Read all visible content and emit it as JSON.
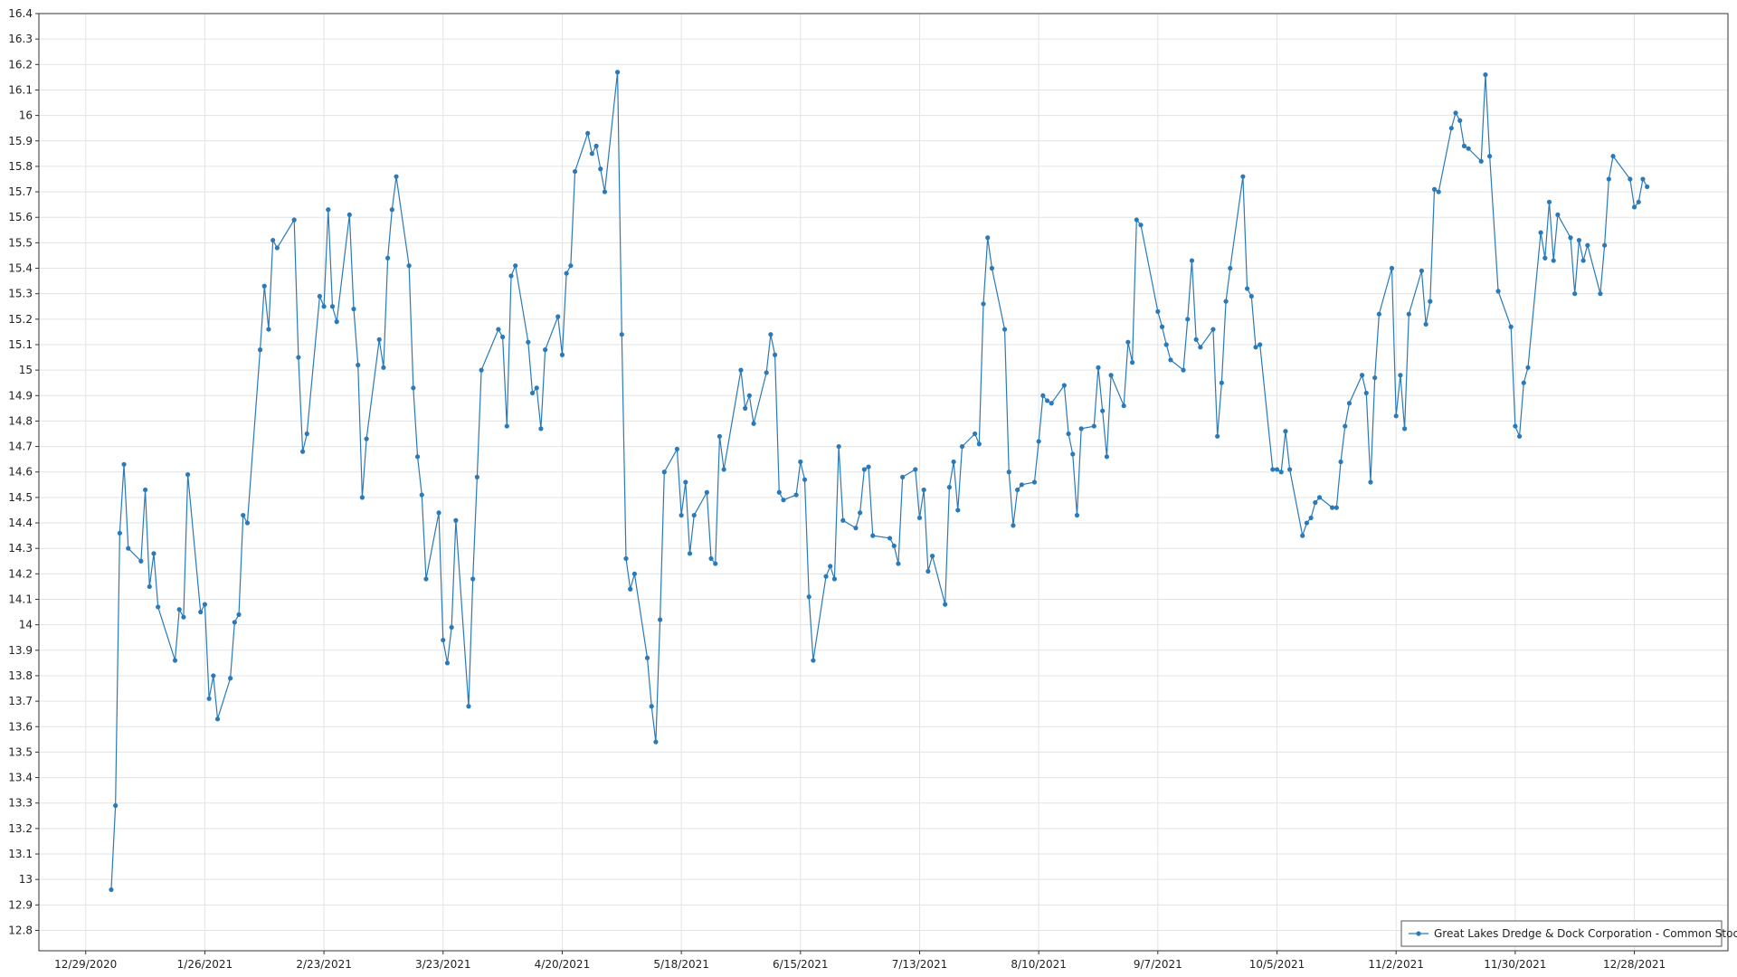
{
  "chart_data": {
    "type": "line",
    "x": [
      "1/4/2021",
      "1/5/2021",
      "1/6/2021",
      "1/7/2021",
      "1/8/2021",
      "1/11/2021",
      "1/12/2021",
      "1/13/2021",
      "1/14/2021",
      "1/15/2021",
      "1/19/2021",
      "1/20/2021",
      "1/21/2021",
      "1/22/2021",
      "1/25/2021",
      "1/26/2021",
      "1/27/2021",
      "1/28/2021",
      "1/29/2021",
      "2/1/2021",
      "2/2/2021",
      "2/3/2021",
      "2/4/2021",
      "2/5/2021",
      "2/8/2021",
      "2/9/2021",
      "2/10/2021",
      "2/11/2021",
      "2/12/2021",
      "2/16/2021",
      "2/17/2021",
      "2/18/2021",
      "2/19/2021",
      "2/22/2021",
      "2/23/2021",
      "2/24/2021",
      "2/25/2021",
      "2/26/2021",
      "3/1/2021",
      "3/2/2021",
      "3/3/2021",
      "3/4/2021",
      "3/5/2021",
      "3/8/2021",
      "3/9/2021",
      "3/10/2021",
      "3/11/2021",
      "3/12/2021",
      "3/15/2021",
      "3/16/2021",
      "3/17/2021",
      "3/18/2021",
      "3/19/2021",
      "3/22/2021",
      "3/23/2021",
      "3/24/2021",
      "3/25/2021",
      "3/26/2021",
      "3/29/2021",
      "3/30/2021",
      "3/31/2021",
      "4/1/2021",
      "4/5/2021",
      "4/6/2021",
      "4/7/2021",
      "4/8/2021",
      "4/9/2021",
      "4/12/2021",
      "4/13/2021",
      "4/14/2021",
      "4/15/2021",
      "4/16/2021",
      "4/19/2021",
      "4/20/2021",
      "4/21/2021",
      "4/22/2021",
      "4/23/2021",
      "4/26/2021",
      "4/27/2021",
      "4/28/2021",
      "4/29/2021",
      "4/30/2021",
      "5/3/2021",
      "5/4/2021",
      "5/5/2021",
      "5/6/2021",
      "5/7/2021",
      "5/10/2021",
      "5/11/2021",
      "5/12/2021",
      "5/13/2021",
      "5/14/2021",
      "5/17/2021",
      "5/18/2021",
      "5/19/2021",
      "5/20/2021",
      "5/21/2021",
      "5/24/2021",
      "5/25/2021",
      "5/26/2021",
      "5/27/2021",
      "5/28/2021",
      "6/1/2021",
      "6/2/2021",
      "6/3/2021",
      "6/4/2021",
      "6/7/2021",
      "6/8/2021",
      "6/9/2021",
      "6/10/2021",
      "6/11/2021",
      "6/14/2021",
      "6/15/2021",
      "6/16/2021",
      "6/17/2021",
      "6/18/2021",
      "6/21/2021",
      "6/22/2021",
      "6/23/2021",
      "6/24/2021",
      "6/25/2021",
      "6/28/2021",
      "6/29/2021",
      "6/30/2021",
      "7/1/2021",
      "7/2/2021",
      "7/6/2021",
      "7/7/2021",
      "7/8/2021",
      "7/9/2021",
      "7/12/2021",
      "7/13/2021",
      "7/14/2021",
      "7/15/2021",
      "7/16/2021",
      "7/19/2021",
      "7/20/2021",
      "7/21/2021",
      "7/22/2021",
      "7/23/2021",
      "7/26/2021",
      "7/27/2021",
      "7/28/2021",
      "7/29/2021",
      "7/30/2021",
      "8/2/2021",
      "8/3/2021",
      "8/4/2021",
      "8/5/2021",
      "8/6/2021",
      "8/9/2021",
      "8/10/2021",
      "8/11/2021",
      "8/12/2021",
      "8/13/2021",
      "8/16/2021",
      "8/17/2021",
      "8/18/2021",
      "8/19/2021",
      "8/20/2021",
      "8/23/2021",
      "8/24/2021",
      "8/25/2021",
      "8/26/2021",
      "8/27/2021",
      "8/30/2021",
      "8/31/2021",
      "9/1/2021",
      "9/2/2021",
      "9/3/2021",
      "9/7/2021",
      "9/8/2021",
      "9/9/2021",
      "9/10/2021",
      "9/13/2021",
      "9/14/2021",
      "9/15/2021",
      "9/16/2021",
      "9/17/2021",
      "9/20/2021",
      "9/21/2021",
      "9/22/2021",
      "9/23/2021",
      "9/24/2021",
      "9/27/2021",
      "9/28/2021",
      "9/29/2021",
      "9/30/2021",
      "10/1/2021",
      "10/4/2021",
      "10/5/2021",
      "10/6/2021",
      "10/7/2021",
      "10/8/2021",
      "10/11/2021",
      "10/12/2021",
      "10/13/2021",
      "10/14/2021",
      "10/15/2021",
      "10/18/2021",
      "10/19/2021",
      "10/20/2021",
      "10/21/2021",
      "10/22/2021",
      "10/25/2021",
      "10/26/2021",
      "10/27/2021",
      "10/28/2021",
      "10/29/2021",
      "11/1/2021",
      "11/2/2021",
      "11/3/2021",
      "11/4/2021",
      "11/5/2021",
      "11/8/2021",
      "11/9/2021",
      "11/10/2021",
      "11/11/2021",
      "11/12/2021",
      "11/15/2021",
      "11/16/2021",
      "11/17/2021",
      "11/18/2021",
      "11/19/2021",
      "11/22/2021",
      "11/23/2021",
      "11/24/2021",
      "11/26/2021",
      "11/29/2021",
      "11/30/2021",
      "12/1/2021",
      "12/2/2021",
      "12/3/2021",
      "12/6/2021",
      "12/7/2021",
      "12/8/2021",
      "12/9/2021",
      "12/10/2021",
      "12/13/2021",
      "12/14/2021",
      "12/15/2021",
      "12/16/2021",
      "12/17/2021",
      "12/20/2021",
      "12/21/2021",
      "12/22/2021",
      "12/23/2021",
      "12/27/2021",
      "12/28/2021",
      "12/29/2021",
      "12/30/2021",
      "12/31/2021"
    ],
    "series": [
      {
        "name": "Great Lakes Dredge & Dock Corporation - Common Stock",
        "color": "#2a7ab9",
        "values": [
          12.96,
          13.29,
          14.36,
          14.63,
          14.3,
          14.25,
          14.53,
          14.15,
          14.28,
          14.07,
          13.86,
          14.06,
          14.03,
          14.59,
          14.05,
          14.08,
          13.71,
          13.8,
          13.63,
          13.79,
          14.01,
          14.04,
          14.43,
          14.4,
          15.08,
          15.33,
          15.16,
          15.51,
          15.48,
          15.59,
          15.05,
          14.68,
          14.75,
          15.29,
          15.25,
          15.63,
          15.25,
          15.19,
          15.61,
          15.24,
          15.02,
          14.5,
          14.73,
          15.12,
          15.01,
          15.44,
          15.63,
          15.76,
          15.41,
          14.93,
          14.66,
          14.51,
          14.18,
          14.44,
          13.94,
          13.85,
          13.99,
          14.41,
          13.68,
          14.18,
          14.58,
          15.0,
          15.16,
          15.13,
          14.78,
          15.37,
          15.41,
          15.11,
          14.91,
          14.93,
          14.77,
          15.08,
          15.21,
          15.06,
          15.38,
          15.41,
          15.78,
          15.93,
          15.85,
          15.88,
          15.79,
          15.7,
          16.17,
          15.14,
          14.26,
          14.14,
          14.2,
          13.87,
          13.68,
          13.54,
          14.02,
          14.6,
          14.69,
          14.43,
          14.56,
          14.28,
          14.43,
          14.52,
          14.26,
          14.24,
          14.74,
          14.61,
          15.0,
          14.85,
          14.9,
          14.79,
          14.99,
          15.14,
          15.06,
          14.52,
          14.49,
          14.51,
          14.64,
          14.57,
          14.11,
          13.86,
          14.19,
          14.23,
          14.18,
          14.7,
          14.41,
          14.38,
          14.44,
          14.61,
          14.62,
          14.35,
          14.34,
          14.31,
          14.24,
          14.58,
          14.61,
          14.42,
          14.53,
          14.21,
          14.27,
          14.08,
          14.54,
          14.64,
          14.45,
          14.7,
          14.75,
          14.71,
          15.26,
          15.52,
          15.4,
          15.16,
          14.6,
          14.39,
          14.53,
          14.55,
          14.56,
          14.72,
          14.9,
          14.88,
          14.87,
          14.94,
          14.75,
          14.67,
          14.43,
          14.77,
          14.78,
          15.01,
          14.84,
          14.66,
          14.98,
          14.86,
          15.11,
          15.03,
          15.59,
          15.57,
          15.23,
          15.17,
          15.1,
          15.04,
          15.0,
          15.2,
          15.43,
          15.12,
          15.09,
          15.16,
          14.74,
          14.95,
          15.27,
          15.4,
          15.76,
          15.32,
          15.29,
          15.09,
          15.1,
          14.61,
          14.61,
          14.6,
          14.76,
          14.61,
          14.35,
          14.4,
          14.42,
          14.48,
          14.5,
          14.46,
          14.46,
          14.64,
          14.78,
          14.87,
          14.98,
          14.91,
          14.56,
          14.97,
          15.22,
          15.4,
          14.82,
          14.98,
          14.77,
          15.22,
          15.39,
          15.18,
          15.27,
          15.71,
          15.7,
          15.95,
          16.01,
          15.98,
          15.88,
          15.87,
          15.82,
          16.16,
          15.84,
          15.31,
          15.17,
          14.78,
          14.74,
          14.95,
          15.01,
          15.54,
          15.44,
          15.66,
          15.43,
          15.61,
          15.52,
          15.3,
          15.51,
          15.43,
          15.49,
          15.3,
          15.49,
          15.75,
          15.84,
          15.75,
          15.64,
          15.66,
          15.75,
          15.72
        ]
      }
    ],
    "xlim": [
      "12/18/2020",
      "1/19/2022"
    ],
    "xticks": [
      "12/29/2020",
      "1/26/2021",
      "2/23/2021",
      "3/23/2021",
      "4/20/2021",
      "5/18/2021",
      "6/15/2021",
      "7/13/2021",
      "8/10/2021",
      "9/7/2021",
      "10/5/2021",
      "11/2/2021",
      "11/30/2021",
      "12/28/2021"
    ],
    "ylim": [
      12.72,
      16.4
    ],
    "yticks": [
      12.8,
      12.9,
      13,
      13.1,
      13.2,
      13.3,
      13.4,
      13.5,
      13.6,
      13.7,
      13.8,
      13.9,
      14,
      14.1,
      14.2,
      14.3,
      14.4,
      14.5,
      14.6,
      14.7,
      14.8,
      14.9,
      15,
      15.1,
      15.2,
      15.3,
      15.4,
      15.5,
      15.6,
      15.7,
      15.8,
      15.9,
      16,
      16.1,
      16.2,
      16.3,
      16.4
    ],
    "grid": true,
    "legend": "bottom-right"
  }
}
